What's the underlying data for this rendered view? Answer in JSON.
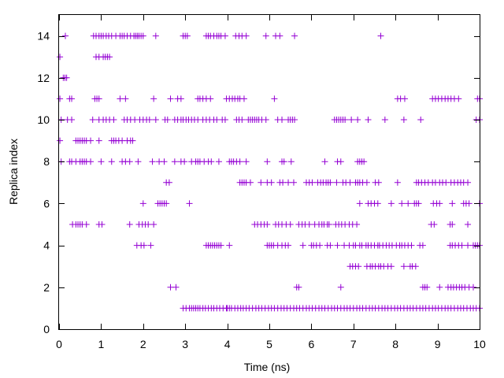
{
  "chart_data": {
    "type": "scatter",
    "marker": "plus",
    "color": "#9400d3",
    "xlabel": "Time (ns)",
    "ylabel": "Replica index",
    "xlim": [
      0,
      10
    ],
    "ylim": [
      0,
      15
    ],
    "xticks": [
      "0",
      "1",
      "2",
      "3",
      "4",
      "5",
      "6",
      "7",
      "8",
      "9",
      "10"
    ],
    "yticks": [
      "0",
      "2",
      "4",
      "6",
      "8",
      "10",
      "12",
      "14"
    ],
    "grid": false,
    "legend": "none",
    "series": [
      {
        "values": [
          {
            "y": 14,
            "x": [
              0.15,
              0.82,
              0.88,
              0.95,
              1.0,
              1.05,
              1.12,
              1.18,
              1.25,
              1.35,
              1.45,
              1.5,
              1.55,
              1.62,
              1.7,
              1.78,
              1.82,
              1.86,
              1.9,
              1.95,
              2.0,
              2.3,
              2.95,
              3.0,
              3.05,
              3.5,
              3.55,
              3.6,
              3.68,
              3.75,
              3.8,
              3.85,
              3.95,
              4.2,
              4.28,
              4.35,
              4.45,
              4.92,
              5.15,
              5.25,
              5.6,
              7.65
            ]
          },
          {
            "y": 13,
            "x": [
              0.02,
              0.88,
              0.95,
              1.05,
              1.1,
              1.15,
              1.2
            ]
          },
          {
            "y": 12,
            "x": [
              0.1,
              0.14,
              0.18
            ]
          },
          {
            "y": 11,
            "x": [
              0.02,
              0.25,
              0.3,
              0.85,
              0.9,
              0.95,
              1.45,
              1.58,
              2.25,
              2.65,
              2.82,
              2.9,
              3.3,
              3.35,
              3.42,
              3.5,
              3.6,
              3.98,
              4.05,
              4.12,
              4.18,
              4.25,
              4.3,
              4.4,
              5.12,
              8.05,
              8.12,
              8.22,
              8.88,
              8.95,
              9.02,
              9.1,
              9.18,
              9.25,
              9.32,
              9.4,
              9.5,
              9.95,
              10.0
            ]
          },
          {
            "y": 10,
            "x": [
              0.05,
              0.2,
              0.3,
              0.8,
              0.95,
              1.05,
              1.12,
              1.2,
              1.3,
              1.55,
              1.62,
              1.7,
              1.8,
              1.92,
              2.0,
              2.08,
              2.15,
              2.3,
              2.52,
              2.58,
              2.75,
              2.82,
              2.9,
              2.95,
              3.02,
              3.08,
              3.15,
              3.22,
              3.3,
              3.42,
              3.5,
              3.58,
              3.68,
              3.75,
              3.88,
              3.95,
              4.22,
              4.28,
              4.35,
              4.5,
              4.55,
              4.6,
              4.65,
              4.7,
              4.75,
              4.82,
              4.92,
              5.2,
              5.3,
              5.45,
              5.5,
              5.55,
              5.6,
              6.55,
              6.6,
              6.65,
              6.7,
              6.75,
              6.8,
              6.95,
              7.1,
              7.35,
              7.75,
              8.2,
              8.6,
              9.92,
              10.0
            ]
          },
          {
            "y": 9,
            "x": [
              0.02,
              0.4,
              0.45,
              0.5,
              0.55,
              0.6,
              0.65,
              0.75,
              0.95,
              1.25,
              1.3,
              1.35,
              1.42,
              1.5,
              1.62,
              1.7,
              1.75
            ]
          },
          {
            "y": 8,
            "x": [
              0.05,
              0.25,
              0.3,
              0.4,
              0.5,
              0.55,
              0.6,
              0.65,
              0.75,
              1.0,
              1.25,
              1.5,
              1.58,
              1.68,
              1.88,
              2.22,
              2.38,
              2.5,
              2.75,
              2.9,
              2.98,
              3.15,
              3.25,
              3.3,
              3.35,
              3.45,
              3.55,
              3.62,
              3.8,
              4.05,
              4.1,
              4.15,
              4.22,
              4.3,
              4.45,
              4.95,
              5.3,
              5.35,
              5.52,
              6.32,
              6.62,
              6.7,
              7.1,
              7.15,
              7.2,
              7.25
            ]
          },
          {
            "y": 7,
            "x": [
              2.55,
              2.62,
              4.3,
              4.35,
              4.4,
              4.45,
              4.55,
              4.8,
              4.95,
              5.05,
              5.25,
              5.32,
              5.45,
              5.58,
              5.88,
              5.95,
              6.02,
              6.15,
              6.22,
              6.28,
              6.35,
              6.4,
              6.45,
              6.6,
              6.75,
              6.82,
              6.92,
              7.05,
              7.1,
              7.15,
              7.22,
              7.32,
              7.52,
              7.6,
              8.05,
              8.5,
              8.55,
              8.62,
              8.7,
              8.78,
              8.88,
              8.95,
              9.05,
              9.12,
              9.2,
              9.32,
              9.4,
              9.48,
              9.55,
              9.62,
              9.72
            ]
          },
          {
            "y": 6,
            "x": [
              2.0,
              2.35,
              2.4,
              2.45,
              2.5,
              2.55,
              3.1,
              7.15,
              7.35,
              7.42,
              7.5,
              7.58,
              7.9,
              8.15,
              8.3,
              8.45,
              8.5,
              8.55,
              8.9,
              8.98,
              9.05,
              9.35,
              9.62,
              9.68,
              9.75,
              10.0
            ]
          },
          {
            "y": 5,
            "x": [
              0.32,
              0.4,
              0.45,
              0.5,
              0.55,
              0.65,
              0.95,
              1.02,
              1.68,
              1.9,
              1.98,
              2.05,
              2.12,
              2.25,
              4.65,
              4.72,
              4.8,
              4.88,
              4.95,
              5.15,
              5.22,
              5.3,
              5.4,
              5.5,
              5.7,
              5.78,
              5.85,
              5.95,
              6.08,
              6.18,
              6.25,
              6.3,
              6.38,
              6.42,
              6.58,
              6.65,
              6.72,
              6.8,
              6.9,
              6.98,
              7.08,
              8.85,
              8.92,
              9.3,
              9.35,
              9.72
            ]
          },
          {
            "y": 4,
            "x": [
              1.85,
              1.95,
              2.02,
              2.18,
              3.5,
              3.55,
              3.6,
              3.65,
              3.7,
              3.75,
              3.8,
              3.85,
              4.05,
              4.95,
              5.0,
              5.05,
              5.1,
              5.2,
              5.3,
              5.38,
              5.45,
              5.8,
              6.0,
              6.05,
              6.12,
              6.2,
              6.38,
              6.45,
              6.62,
              6.78,
              6.9,
              7.0,
              7.05,
              7.15,
              7.2,
              7.3,
              7.35,
              7.42,
              7.5,
              7.58,
              7.62,
              7.7,
              7.78,
              7.85,
              7.92,
              8.02,
              8.1,
              8.15,
              8.22,
              8.3,
              8.38,
              8.58,
              8.65,
              9.3,
              9.35,
              9.42,
              9.5,
              9.58,
              9.72,
              9.85,
              9.9,
              9.95,
              10.0
            ]
          },
          {
            "y": 3,
            "x": [
              6.92,
              6.98,
              7.05,
              7.12,
              7.32,
              7.4,
              7.45,
              7.52,
              7.6,
              7.65,
              7.72,
              7.82,
              7.9,
              8.2,
              8.35,
              8.4,
              8.48
            ]
          },
          {
            "y": 2,
            "x": [
              2.65,
              2.78,
              5.65,
              5.7,
              6.7,
              8.65,
              8.7,
              8.75,
              9.05,
              9.25,
              9.32,
              9.38,
              9.45,
              9.52,
              9.58,
              9.65,
              9.75,
              9.85
            ]
          },
          {
            "y": 1,
            "x": [
              2.95,
              3.02,
              3.1,
              3.15,
              3.2,
              3.25,
              3.3,
              3.35,
              3.42,
              3.48,
              3.55,
              3.62,
              3.68,
              3.75,
              3.82,
              3.9,
              3.98,
              4.0,
              4.05,
              4.1,
              4.18,
              4.25,
              4.32,
              4.38,
              4.45,
              4.52,
              4.6,
              4.68,
              4.75,
              4.82,
              4.9,
              4.98,
              5.05,
              5.12,
              5.2,
              5.28,
              5.35,
              5.42,
              5.5,
              5.58,
              5.65,
              5.72,
              5.8,
              5.88,
              5.95,
              6.02,
              6.1,
              6.18,
              6.25,
              6.32,
              6.4,
              6.48,
              6.55,
              6.62,
              6.7,
              6.78,
              6.85,
              6.92,
              7.0,
              7.08,
              7.15,
              7.22,
              7.3,
              7.38,
              7.45,
              7.52,
              7.6,
              7.68,
              7.75,
              7.82,
              7.9,
              7.98,
              8.05,
              8.12,
              8.2,
              8.28,
              8.35,
              8.42,
              8.5,
              8.58,
              8.65,
              8.72,
              8.8,
              8.88,
              8.95,
              9.02,
              9.1,
              9.18,
              9.25,
              9.32,
              9.4,
              9.48,
              9.55,
              9.62,
              9.7,
              9.78,
              9.85,
              9.92,
              10.0
            ]
          }
        ]
      }
    ]
  }
}
